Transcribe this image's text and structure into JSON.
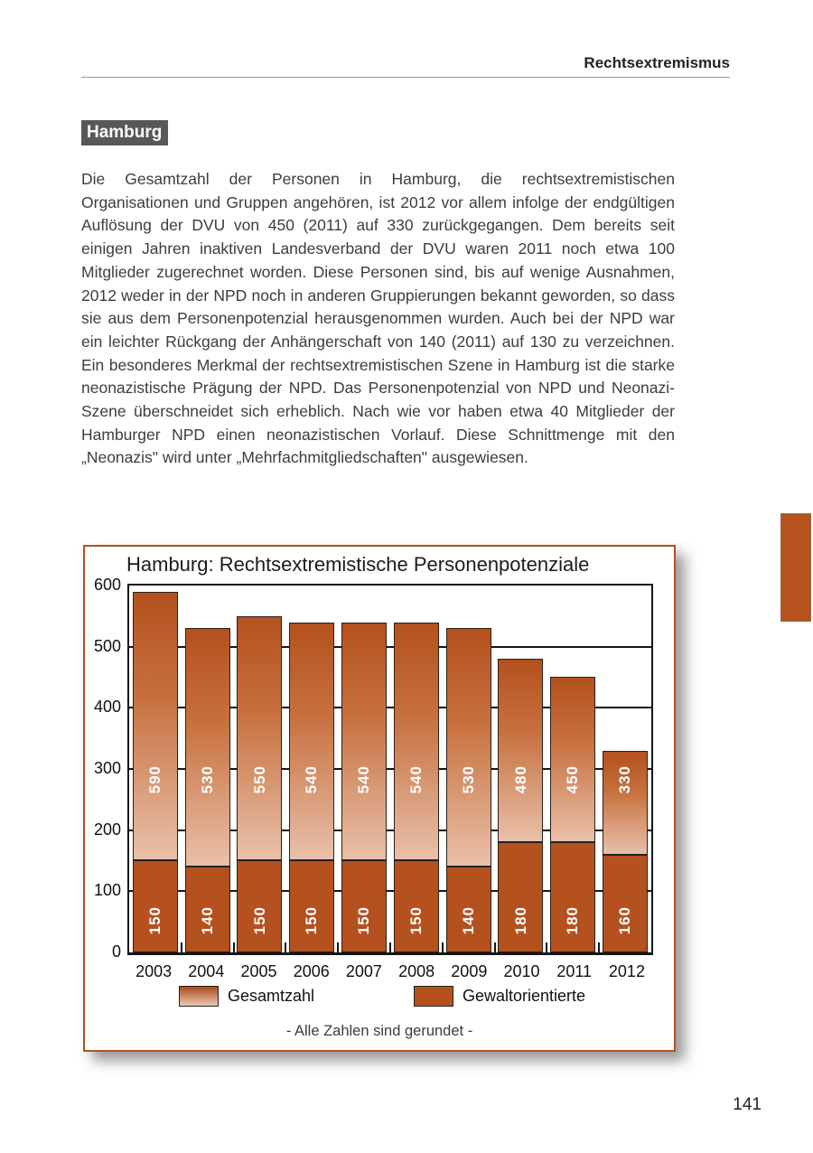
{
  "page": {
    "header": "Rechtsextremismus",
    "section_heading": "Hamburg",
    "paragraph": "Die Gesamtzahl der Personen in Hamburg, die rechtsextremistischen Organisationen und Gruppen angehören, ist 2012 vor allem infolge der endgültigen Auflösung der DVU von 450 (2011) auf 330 zurückgegangen. Dem bereits seit einigen Jahren inaktiven Landesverband der DVU waren 2011 noch etwa 100 Mitglieder zugerechnet worden. Diese Personen sind, bis auf wenige Ausnahmen, 2012 weder in der NPD noch in anderen Gruppierungen bekannt geworden, so dass sie aus dem Personenpotenzial herausgenommen wurden. Auch bei der NPD war ein leichter Rückgang der Anhängerschaft von 140 (2011) auf 130 zu verzeichnen. Ein besonderes Merkmal der rechtsextremistischen Szene in Hamburg ist die starke neonazistische Prägung der NPD. Das Personenpotenzial von NPD und Neonazi-Szene überschneidet sich erheblich. Nach wie vor haben etwa 40 Mitglieder der Hamburger NPD einen neonazistischen Vorlauf. Diese Schnittmenge mit den „Neonazis\" wird unter „Mehrfachmitgliedschaften\" ausgewiesen.",
    "page_number": "141"
  },
  "chart_data": {
    "type": "bar",
    "title": "Hamburg: Rechtsextremistische Personenpotenziale",
    "categories": [
      "2003",
      "2004",
      "2005",
      "2006",
      "2007",
      "2008",
      "2009",
      "2010",
      "2011",
      "2012"
    ],
    "series": [
      {
        "name": "Gesamtzahl",
        "values": [
          590,
          530,
          550,
          540,
          540,
          540,
          530,
          480,
          450,
          330
        ]
      },
      {
        "name": "Gewaltorientierte",
        "values": [
          150,
          140,
          150,
          150,
          150,
          150,
          140,
          180,
          180,
          160
        ]
      }
    ],
    "ylim": [
      0,
      600
    ],
    "yticks": [
      0,
      100,
      200,
      300,
      400,
      500,
      600
    ],
    "grid": true,
    "legend_position": "bottom",
    "footnote": "- Alle Zahlen sind gerundet -",
    "colors": {
      "accent": "#b5521e",
      "bar_dark": "#b4511e",
      "bar_gradient_light": "#e9c0aa",
      "heading_background": "#58585a",
      "axis": "#161616"
    }
  }
}
